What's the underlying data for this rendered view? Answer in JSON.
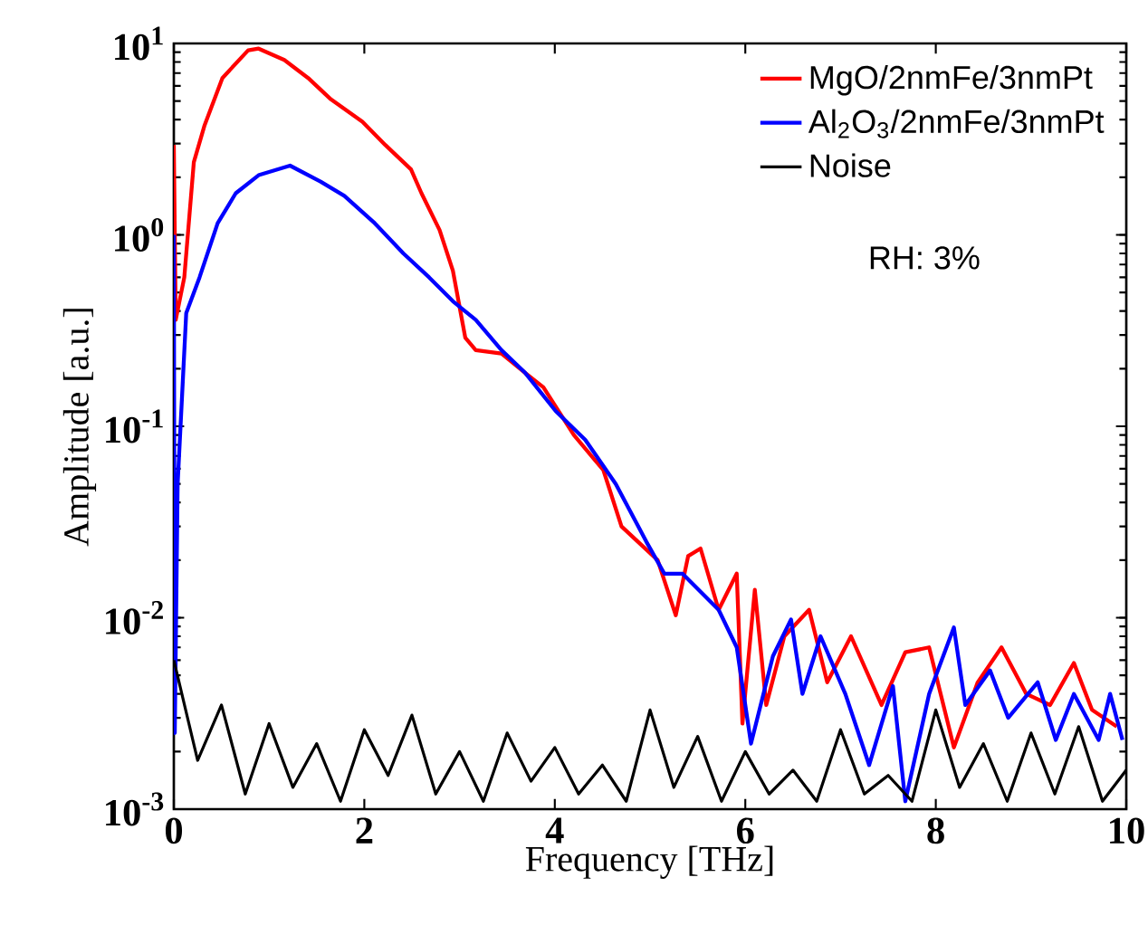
{
  "chart_data": {
    "type": "line",
    "xlabel": "Frequency [THz]",
    "ylabel": "Amplitude [a.u.]",
    "log": "y",
    "xlim": [
      0,
      10
    ],
    "ylim": [
      0.001,
      10
    ],
    "xticks": [
      0,
      2,
      4,
      6,
      8,
      10
    ],
    "yticks": [
      {
        "value": 0.001,
        "label": "10$^{-3}$"
      },
      {
        "value": 0.01,
        "label": "10$^{-2}$"
      },
      {
        "value": 0.1,
        "label": "10$^{-1}$"
      },
      {
        "value": 1,
        "label": "10$^{0}$"
      },
      {
        "value": 10,
        "label": "10$^{1}$"
      }
    ],
    "legend": "top right",
    "marker": "none",
    "line_style": "solid",
    "grid": false,
    "annotations": [
      "RH: 3%"
    ],
    "series": [
      {
        "name": "MgO/2nmFe/3nmPt",
        "color": "#ff0000",
        "x": [
          0,
          0.02,
          0.11,
          0.21,
          0.32,
          0.51,
          0.78,
          0.89,
          1.16,
          1.41,
          1.65,
          1.98,
          2.22,
          2.49,
          2.6,
          2.79,
          2.93,
          3.06,
          3.17,
          3.44,
          3.69,
          3.88,
          4.2,
          4.51,
          4.7,
          5.08,
          5.27,
          5.4,
          5.53,
          5.72,
          5.91,
          5.97,
          6.1,
          6.22,
          6.41,
          6.67,
          6.86,
          7.11,
          7.43,
          7.68,
          7.93,
          8.19,
          8.44,
          8.69,
          8.95,
          9.2,
          9.45,
          9.64,
          9.9
        ],
        "values": [
          2.95,
          0.36,
          0.6,
          2.4,
          3.7,
          6.6,
          9.2,
          9.4,
          8.2,
          6.6,
          5.1,
          3.9,
          2.95,
          2.2,
          1.65,
          1.06,
          0.65,
          0.29,
          0.25,
          0.24,
          0.19,
          0.16,
          0.09,
          0.059,
          0.03,
          0.02,
          0.0103,
          0.021,
          0.023,
          0.011,
          0.017,
          0.0028,
          0.014,
          0.0035,
          0.008,
          0.011,
          0.0046,
          0.008,
          0.0035,
          0.0066,
          0.007,
          0.0021,
          0.0046,
          0.007,
          0.004,
          0.0035,
          0.0058,
          0.0033,
          0.0027
        ]
      },
      {
        "name": "Al$_{2}$O$_{3}$/2nmFe/3nmPt",
        "color": "#0000ff",
        "x": [
          0,
          0.01,
          0.04,
          0.13,
          0.27,
          0.46,
          0.65,
          0.89,
          1.22,
          1.54,
          1.79,
          2.11,
          2.41,
          2.68,
          2.93,
          3.17,
          3.44,
          3.69,
          4.01,
          4.32,
          4.64,
          4.96,
          5.15,
          5.34,
          5.72,
          5.91,
          6.06,
          6.29,
          6.48,
          6.6,
          6.79,
          7.05,
          7.3,
          7.55,
          7.68,
          7.93,
          8.19,
          8.31,
          8.57,
          8.76,
          9.07,
          9.26,
          9.45,
          9.71,
          9.83,
          9.96
        ],
        "values": [
          1.0,
          0.0025,
          0.05,
          0.39,
          0.6,
          1.15,
          1.65,
          2.05,
          2.3,
          1.9,
          1.6,
          1.15,
          0.8,
          0.6,
          0.45,
          0.36,
          0.25,
          0.19,
          0.12,
          0.085,
          0.05,
          0.025,
          0.017,
          0.017,
          0.011,
          0.007,
          0.0022,
          0.0063,
          0.0098,
          0.004,
          0.008,
          0.004,
          0.0017,
          0.0044,
          0.0011,
          0.004,
          0.0089,
          0.0035,
          0.0053,
          0.003,
          0.0046,
          0.0023,
          0.004,
          0.0023,
          0.004,
          0.0023
        ]
      },
      {
        "name": "Noise",
        "color": "#000000",
        "x": [
          0,
          0.25,
          0.5,
          0.75,
          1,
          1.25,
          1.5,
          1.75,
          2,
          2.25,
          2.5,
          2.75,
          3,
          3.25,
          3.5,
          3.75,
          4,
          4.25,
          4.5,
          4.75,
          5,
          5.25,
          5.5,
          5.75,
          6,
          6.25,
          6.5,
          6.75,
          7,
          7.25,
          7.5,
          7.75,
          8,
          8.25,
          8.5,
          8.75,
          9,
          9.25,
          9.5,
          9.75,
          10
        ],
        "values": [
          0.006,
          0.0018,
          0.0035,
          0.0012,
          0.0028,
          0.0013,
          0.0022,
          0.0011,
          0.0026,
          0.0015,
          0.0031,
          0.0012,
          0.002,
          0.0011,
          0.0025,
          0.0014,
          0.0021,
          0.0012,
          0.0017,
          0.0011,
          0.0033,
          0.0013,
          0.0024,
          0.0011,
          0.002,
          0.0012,
          0.0016,
          0.0011,
          0.0026,
          0.0012,
          0.0015,
          0.0011,
          0.0033,
          0.0013,
          0.0022,
          0.0011,
          0.0025,
          0.0012,
          0.0027,
          0.0011,
          0.0016
        ]
      }
    ]
  }
}
